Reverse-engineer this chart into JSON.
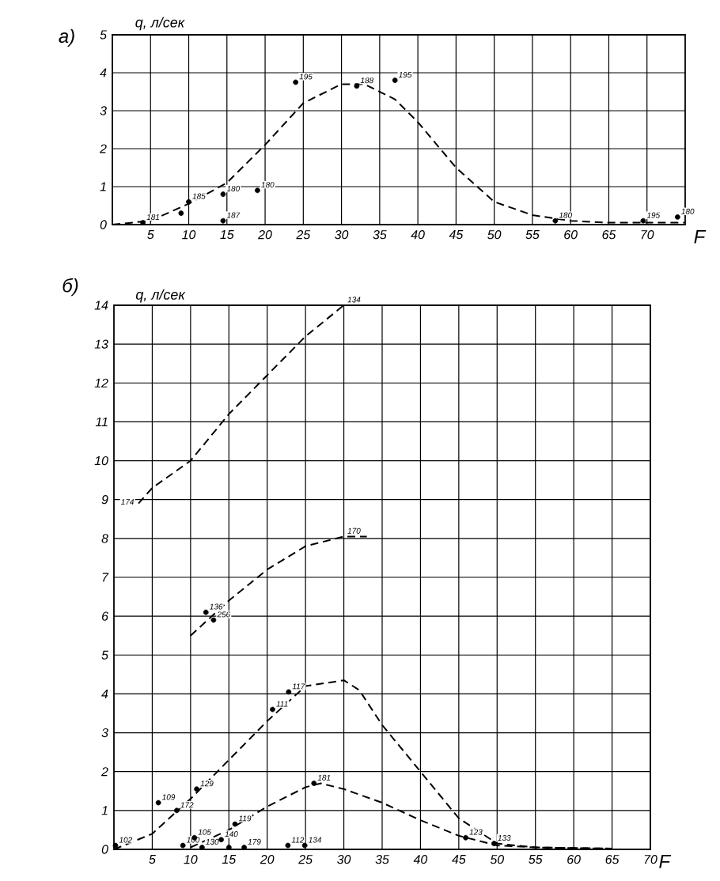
{
  "chart_data": [
    {
      "type": "line",
      "title": "а)",
      "xlabel": "F",
      "ylabel": "q, л/сек",
      "xlim": [
        0,
        75
      ],
      "ylim": [
        0,
        5
      ],
      "xticks": [
        5,
        10,
        15,
        20,
        25,
        30,
        35,
        40,
        45,
        50,
        55,
        60,
        65,
        70
      ],
      "yticks": [
        0,
        1,
        2,
        3,
        4,
        5
      ],
      "grid": true,
      "series": [
        {
          "color": "#000000",
          "line_style": "dashed",
          "marker": "none",
          "x": [
            0,
            5,
            10,
            15,
            20,
            25,
            30,
            33,
            37,
            40,
            45,
            50,
            55,
            60,
            65,
            70,
            75
          ],
          "values": [
            0,
            0.1,
            0.55,
            1.1,
            2.1,
            3.2,
            3.7,
            3.7,
            3.3,
            2.7,
            1.5,
            0.6,
            0.25,
            0.1,
            0.05,
            0.05,
            0.05
          ]
        },
        {
          "type": "scatter",
          "color": "#000000",
          "marker": "circle",
          "x": [
            4,
            9,
            10,
            14.5,
            14.5,
            19,
            24,
            32,
            37,
            58,
            69.5,
            74
          ],
          "values": [
            0.05,
            0.3,
            0.6,
            0.8,
            0.1,
            0.9,
            3.75,
            3.65,
            3.8,
            0.1,
            0.1,
            0.2
          ]
        }
      ],
      "annotations": [
        {
          "text": "181",
          "x": 4,
          "y": 0.05
        },
        {
          "text": "185",
          "x": 10,
          "y": 0.6
        },
        {
          "text": "180",
          "x": 14.5,
          "y": 0.8
        },
        {
          "text": "187",
          "x": 14.5,
          "y": 0.1
        },
        {
          "text": "180",
          "x": 19,
          "y": 0.9
        },
        {
          "text": "195",
          "x": 24,
          "y": 3.75
        },
        {
          "text": "188",
          "x": 32,
          "y": 3.65
        },
        {
          "text": "195",
          "x": 37,
          "y": 3.8
        },
        {
          "text": "180",
          "x": 58,
          "y": 0.1
        },
        {
          "text": "195",
          "x": 69.5,
          "y": 0.1
        },
        {
          "text": "180",
          "x": 74,
          "y": 0.2
        }
      ]
    },
    {
      "type": "line",
      "title": "б)",
      "xlabel": "F",
      "ylabel": "q, л/сек",
      "xlim": [
        0,
        70
      ],
      "ylim": [
        0,
        14
      ],
      "xticks": [
        5,
        10,
        15,
        20,
        25,
        30,
        35,
        40,
        45,
        50,
        55,
        60,
        65,
        70
      ],
      "yticks": [
        0,
        1,
        2,
        3,
        4,
        5,
        6,
        7,
        8,
        9,
        10,
        11,
        12,
        13,
        14
      ],
      "grid": true,
      "series": [
        {
          "color": "#000000",
          "line_style": "dashed",
          "marker": "none",
          "x": [
            3.2,
            5,
            10,
            15,
            20,
            25,
            30,
            33
          ],
          "values": [
            8.9,
            9.3,
            10,
            11.2,
            12.2,
            13.2,
            14,
            14
          ]
        },
        {
          "color": "#000000",
          "line_style": "dashed",
          "marker": "none",
          "x": [
            10,
            15,
            20,
            25,
            30,
            33
          ],
          "values": [
            5.5,
            6.4,
            7.2,
            7.8,
            8.05,
            8.05
          ]
        },
        {
          "color": "#000000",
          "line_style": "dashed",
          "marker": "none",
          "x": [
            0,
            5,
            10,
            15,
            20,
            25,
            30,
            32,
            35,
            40,
            45,
            50,
            55,
            65
          ],
          "values": [
            0,
            0.4,
            1.3,
            2.3,
            3.3,
            4.2,
            4.35,
            4.1,
            3.2,
            2.0,
            0.8,
            0.15,
            0.05,
            0.02
          ]
        },
        {
          "color": "#000000",
          "line_style": "dashed",
          "marker": "none",
          "x": [
            10,
            15,
            20,
            25,
            27,
            30,
            35,
            40,
            45,
            50,
            55,
            65
          ],
          "values": [
            0.05,
            0.5,
            1.1,
            1.6,
            1.7,
            1.55,
            1.2,
            0.75,
            0.35,
            0.1,
            0.05,
            0.02
          ]
        },
        {
          "type": "scatter",
          "color": "#000000",
          "marker": "circle",
          "x": [
            12,
            13,
            5.8,
            8.2,
            10.8,
            20.7,
            22.8,
            26.1,
            45.9,
            49.6,
            0.2,
            22.7,
            24.9,
            15.8,
            9,
            10.5,
            11.5,
            14,
            17,
            15
          ],
          "values": [
            6.1,
            5.9,
            1.2,
            1.0,
            1.55,
            3.6,
            4.05,
            1.7,
            0.3,
            0.15,
            0.1,
            0.1,
            0.1,
            0.65,
            0.1,
            0.3,
            0.05,
            0.25,
            0.05,
            0.05
          ]
        }
      ],
      "annotations": [
        {
          "text": "174",
          "x": 3.2,
          "y": 8.9
        },
        {
          "text": "134",
          "x": 30,
          "y": 14
        },
        {
          "text": "170",
          "x": 30,
          "y": 8.05
        },
        {
          "text": "136",
          "x": 12,
          "y": 6.1
        },
        {
          "text": "256",
          "x": 13,
          "y": 5.9
        },
        {
          "text": "109",
          "x": 5.8,
          "y": 1.2
        },
        {
          "text": "172",
          "x": 8.2,
          "y": 1.0
        },
        {
          "text": "129",
          "x": 10.8,
          "y": 1.55
        },
        {
          "text": "111",
          "x": 20.7,
          "y": 3.6
        },
        {
          "text": "117",
          "x": 22.8,
          "y": 4.05
        },
        {
          "text": "181",
          "x": 26.1,
          "y": 1.7
        },
        {
          "text": "123",
          "x": 45.9,
          "y": 0.3
        },
        {
          "text": "133",
          "x": 49.6,
          "y": 0.15
        },
        {
          "text": "102",
          "x": 0.2,
          "y": 0.1
        },
        {
          "text": "112",
          "x": 22.7,
          "y": 0.1
        },
        {
          "text": "134",
          "x": 24.9,
          "y": 0.1
        },
        {
          "text": "119",
          "x": 15.8,
          "y": 0.65
        },
        {
          "text": "100",
          "x": 9,
          "y": 0.1
        },
        {
          "text": "105",
          "x": 10.5,
          "y": 0.3
        },
        {
          "text": "130",
          "x": 11.5,
          "y": 0.05
        },
        {
          "text": "140",
          "x": 14,
          "y": 0.25
        },
        {
          "text": "179",
          "x": 17,
          "y": 0.05
        }
      ]
    }
  ]
}
